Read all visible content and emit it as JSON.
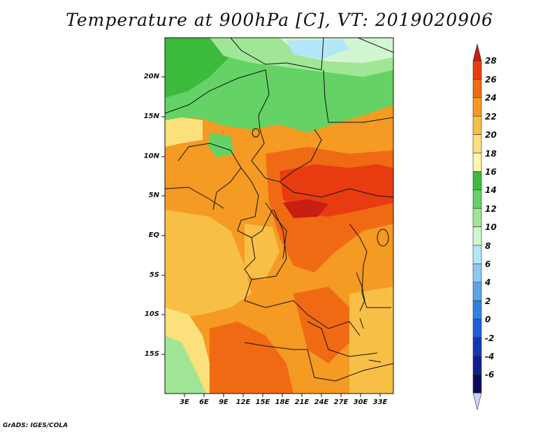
{
  "title": "Temperature at 900hPa [C], VT: 2019020906",
  "footer": "GrADS: IGES/COLA",
  "map": {
    "lat_labels": [
      "20N",
      "15N",
      "10N",
      "5N",
      "EQ",
      "5S",
      "10S",
      "15S"
    ],
    "lon_labels": [
      "3E",
      "6E",
      "9E",
      "12E",
      "15E",
      "18E",
      "21E",
      "24E",
      "27E",
      "30E",
      "33E"
    ]
  },
  "colorbar": {
    "labels": [
      "28",
      "26",
      "24",
      "22",
      "20",
      "18",
      "16",
      "14",
      "12",
      "10",
      "8",
      "6",
      "4",
      "2",
      "0",
      "-2",
      "-4",
      "-6"
    ],
    "colors": [
      "#c81e14",
      "#e83c10",
      "#f06a14",
      "#f59a22",
      "#f8bf46",
      "#fbe07c",
      "#fff4b0",
      "#3cba3c",
      "#64d264",
      "#a0e696",
      "#d2f6d2",
      "#b4e6fa",
      "#8cc8f0",
      "#5aa5e8",
      "#2d82e1",
      "#1e5fd2",
      "#1437b4",
      "#0f1e8c",
      "#0a0a5a",
      "#d2d2f0"
    ]
  }
}
